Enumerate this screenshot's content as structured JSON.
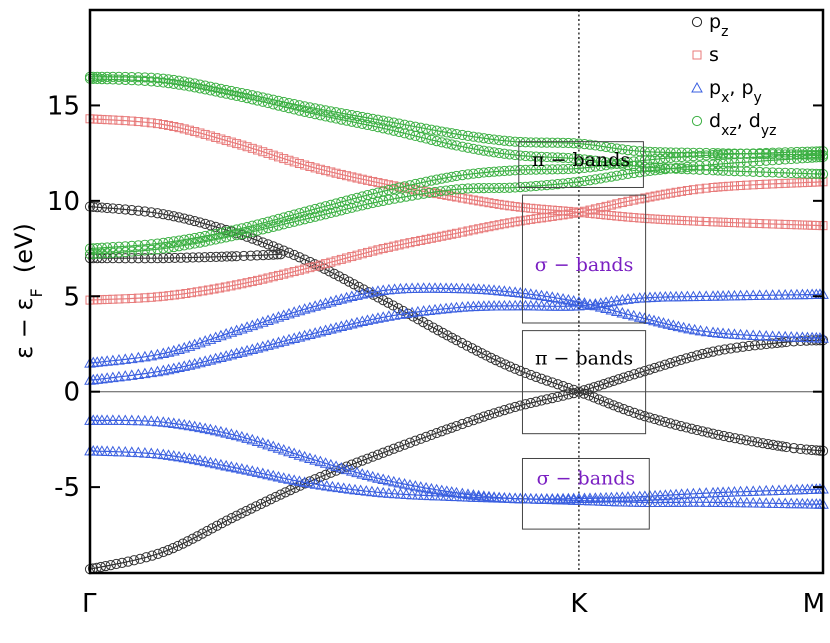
{
  "chart_data": {
    "type": "line",
    "title": "",
    "xlabel": "",
    "ylabel": "ε − ε_F (eV)",
    "ylabel_parts": {
      "main": "ε − ε",
      "sub": "F",
      "unit": "(eV)"
    },
    "x_ticks": [
      {
        "x": 0.0,
        "label": "Γ"
      },
      {
        "x": 0.667,
        "label": "K"
      },
      {
        "x": 1.0,
        "label": "M"
      }
    ],
    "xlim": [
      0,
      1
    ],
    "ylim": [
      -9.5,
      20
    ],
    "y_ticks": [
      {
        "y": 15,
        "label": "15"
      },
      {
        "y": 10,
        "label": "10"
      },
      {
        "y": 5,
        "label": "5"
      },
      {
        "y": 0,
        "label": "0"
      },
      {
        "y": -5,
        "label": "-5"
      }
    ],
    "fermi_level": 0,
    "k_point_line": 0.667,
    "grid": false,
    "legend_position": "top-right",
    "legend": [
      {
        "marker": "circle",
        "color": "#222222",
        "label": "p",
        "sub": "z",
        "label2": "",
        "sub2": ""
      },
      {
        "marker": "square",
        "color": "#e87a7a",
        "label": "s",
        "sub": "",
        "label2": "",
        "sub2": ""
      },
      {
        "marker": "triangle",
        "color": "#3a5fe0",
        "label": "p",
        "sub": "x",
        "label2": ", p",
        "sub2": "y"
      },
      {
        "marker": "circle",
        "color": "#3cb043",
        "label": "d",
        "sub": "xz",
        "label2": ", d",
        "sub2": "yz"
      }
    ],
    "annotations": [
      {
        "text": "π − bands",
        "color": "#000000",
        "box_y": [
          10.7,
          13.1
        ],
        "box_x": [
          0.585,
          0.755
        ],
        "text_y": 12.2
      },
      {
        "text": "σ − bands",
        "color": "#7a1fc2",
        "box_y": [
          3.6,
          10.3
        ],
        "box_x": [
          0.59,
          0.758
        ],
        "text_y": 6.7
      },
      {
        "text": "π − bands",
        "color": "#000000",
        "box_y": [
          -2.2,
          3.2
        ],
        "box_x": [
          0.59,
          0.758
        ],
        "text_y": 1.8
      },
      {
        "text": "σ − bands",
        "color": "#7a1fc2",
        "box_y": [
          -7.2,
          -3.5
        ],
        "box_x": [
          0.59,
          0.763
        ],
        "text_y": -4.5
      }
    ],
    "series": [
      {
        "orbital": "pz",
        "marker": "circle",
        "color": "#333333",
        "points": [
          [
            0,
            -9.3
          ],
          [
            0.1,
            -8.4
          ],
          [
            0.2,
            -6.5
          ],
          [
            0.3,
            -4.7
          ],
          [
            0.4,
            -3.2
          ],
          [
            0.5,
            -1.8
          ],
          [
            0.58,
            -0.8
          ],
          [
            0.667,
            0.0
          ],
          [
            0.75,
            1.0
          ],
          [
            0.85,
            2.1
          ],
          [
            0.95,
            2.6
          ],
          [
            1.0,
            2.7
          ]
        ]
      },
      {
        "orbital": "pz",
        "marker": "circle",
        "color": "#333333",
        "points": [
          [
            0,
            9.7
          ],
          [
            0.1,
            9.3
          ],
          [
            0.2,
            8.3
          ],
          [
            0.3,
            6.8
          ],
          [
            0.4,
            4.8
          ],
          [
            0.5,
            2.7
          ],
          [
            0.58,
            1.2
          ],
          [
            0.667,
            0.0
          ],
          [
            0.75,
            -1.2
          ],
          [
            0.85,
            -2.2
          ],
          [
            0.95,
            -2.9
          ],
          [
            1.0,
            -3.1
          ]
        ]
      },
      {
        "orbital": "pz",
        "marker": "circle",
        "color": "#333333",
        "points": [
          [
            0,
            7.0
          ],
          [
            0.1,
            7.0
          ],
          [
            0.2,
            7.1
          ],
          [
            0.26,
            7.2
          ]
        ]
      },
      {
        "orbital": "s",
        "marker": "square",
        "color": "#e87a7a",
        "points": [
          [
            0,
            14.3
          ],
          [
            0.1,
            14.0
          ],
          [
            0.2,
            13.0
          ],
          [
            0.3,
            11.8
          ],
          [
            0.4,
            10.9
          ],
          [
            0.5,
            10.2
          ],
          [
            0.58,
            9.7
          ],
          [
            0.667,
            9.4
          ],
          [
            0.75,
            9.1
          ],
          [
            0.85,
            8.9
          ],
          [
            1.0,
            8.7
          ]
        ]
      },
      {
        "orbital": "s",
        "marker": "square",
        "color": "#e87a7a",
        "points": [
          [
            0,
            4.8
          ],
          [
            0.1,
            5.0
          ],
          [
            0.2,
            5.6
          ],
          [
            0.3,
            6.5
          ],
          [
            0.4,
            7.5
          ],
          [
            0.5,
            8.3
          ],
          [
            0.58,
            8.9
          ],
          [
            0.667,
            9.4
          ],
          [
            0.75,
            10.1
          ],
          [
            0.85,
            10.7
          ],
          [
            1.0,
            11.0
          ]
        ]
      },
      {
        "orbital": "pxpy",
        "marker": "triangle",
        "color": "#3a5fe0",
        "points": [
          [
            0,
            0.6
          ],
          [
            0.1,
            1.1
          ],
          [
            0.2,
            2.0
          ],
          [
            0.3,
            3.0
          ],
          [
            0.4,
            3.9
          ],
          [
            0.5,
            4.4
          ],
          [
            0.58,
            4.5
          ],
          [
            0.667,
            4.5
          ],
          [
            0.75,
            4.9
          ],
          [
            0.85,
            5.0
          ],
          [
            1.0,
            5.1
          ]
        ]
      },
      {
        "orbital": "pxpy",
        "marker": "triangle",
        "color": "#3a5fe0",
        "points": [
          [
            0,
            1.5
          ],
          [
            0.1,
            2.0
          ],
          [
            0.2,
            3.2
          ],
          [
            0.3,
            4.4
          ],
          [
            0.4,
            5.3
          ],
          [
            0.5,
            5.4
          ],
          [
            0.58,
            5.2
          ],
          [
            0.667,
            4.7
          ],
          [
            0.75,
            3.9
          ],
          [
            0.85,
            3.1
          ],
          [
            1.0,
            2.8
          ]
        ]
      },
      {
        "orbital": "pxpy",
        "marker": "triangle",
        "color": "#3a5fe0",
        "points": [
          [
            0,
            -1.5
          ],
          [
            0.1,
            -1.6
          ],
          [
            0.2,
            -2.3
          ],
          [
            0.3,
            -3.5
          ],
          [
            0.4,
            -4.6
          ],
          [
            0.5,
            -5.3
          ],
          [
            0.58,
            -5.6
          ],
          [
            0.667,
            -5.6
          ],
          [
            0.75,
            -5.5
          ],
          [
            0.85,
            -5.3
          ],
          [
            1.0,
            -5.1
          ]
        ]
      },
      {
        "orbital": "pxpy",
        "marker": "triangle",
        "color": "#3a5fe0",
        "points": [
          [
            0,
            -3.1
          ],
          [
            0.1,
            -3.3
          ],
          [
            0.2,
            -4.0
          ],
          [
            0.3,
            -4.8
          ],
          [
            0.4,
            -5.3
          ],
          [
            0.5,
            -5.5
          ],
          [
            0.58,
            -5.6
          ],
          [
            0.667,
            -5.7
          ],
          [
            0.75,
            -5.8
          ],
          [
            0.85,
            -5.8
          ],
          [
            1.0,
            -5.9
          ]
        ]
      },
      {
        "orbital": "dxzdyz",
        "marker": "circle",
        "color": "#3cb043",
        "points": [
          [
            0,
            16.5
          ],
          [
            0.1,
            16.4
          ],
          [
            0.2,
            15.7
          ],
          [
            0.3,
            14.9
          ],
          [
            0.4,
            14.2
          ],
          [
            0.5,
            13.5
          ],
          [
            0.58,
            13.1
          ],
          [
            0.667,
            13.0
          ],
          [
            0.75,
            12.6
          ],
          [
            0.85,
            12.5
          ],
          [
            1.0,
            12.4
          ]
        ]
      },
      {
        "orbital": "dxzdyz",
        "marker": "circle",
        "color": "#3cb043",
        "points": [
          [
            0,
            16.4
          ],
          [
            0.1,
            16.2
          ],
          [
            0.2,
            15.5
          ],
          [
            0.3,
            14.6
          ],
          [
            0.4,
            13.8
          ],
          [
            0.5,
            12.9
          ],
          [
            0.58,
            12.4
          ],
          [
            0.667,
            12.2
          ],
          [
            0.75,
            11.8
          ],
          [
            0.85,
            11.6
          ],
          [
            1.0,
            11.4
          ]
        ]
      },
      {
        "orbital": "dxzdyz",
        "marker": "circle",
        "color": "#3cb043",
        "points": [
          [
            0,
            7.5
          ],
          [
            0.1,
            7.8
          ],
          [
            0.2,
            8.5
          ],
          [
            0.3,
            9.5
          ],
          [
            0.4,
            10.5
          ],
          [
            0.5,
            11.3
          ],
          [
            0.58,
            11.6
          ],
          [
            0.667,
            11.7
          ],
          [
            0.75,
            12.1
          ],
          [
            0.85,
            12.4
          ],
          [
            1.0,
            12.6
          ]
        ]
      },
      {
        "orbital": "dxzdyz",
        "marker": "circle",
        "color": "#3cb043",
        "points": [
          [
            0,
            7.2
          ],
          [
            0.1,
            7.5
          ],
          [
            0.2,
            8.2
          ],
          [
            0.3,
            9.1
          ],
          [
            0.4,
            10.0
          ],
          [
            0.5,
            10.6
          ],
          [
            0.58,
            10.7
          ],
          [
            0.667,
            11.0
          ],
          [
            0.75,
            11.5
          ],
          [
            0.85,
            11.9
          ],
          [
            1.0,
            12.3
          ]
        ]
      }
    ]
  }
}
